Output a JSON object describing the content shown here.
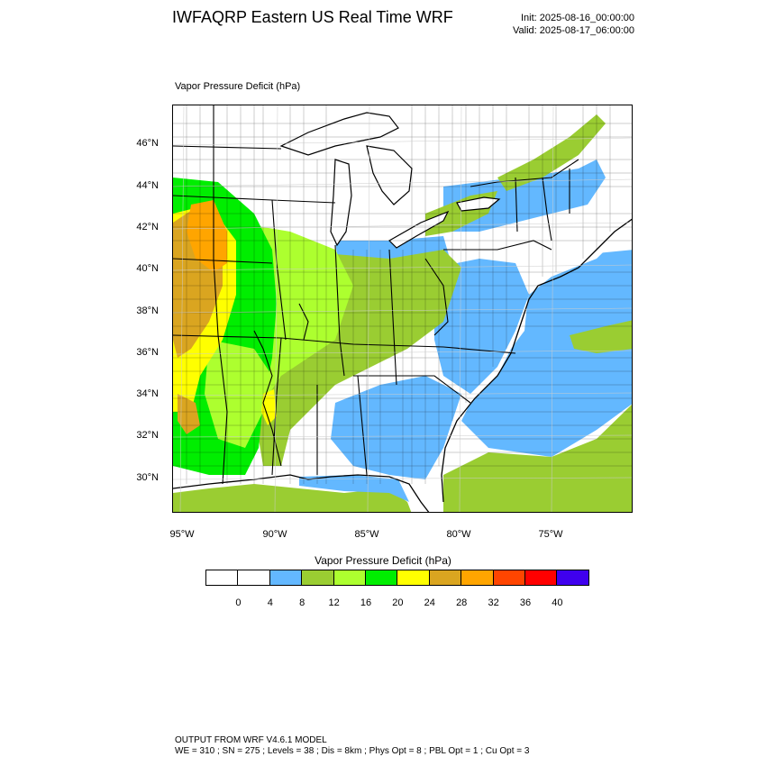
{
  "header": {
    "title": "IWFAQRP Eastern US Real Time WRF",
    "init": "Init: 2025-08-16_00:00:00",
    "valid": "Valid: 2025-08-17_06:00:00"
  },
  "plot": {
    "label": "Vapor Pressure Deficit   (hPa)"
  },
  "map": {
    "lat_labels": [
      "46°N",
      "44°N",
      "42°N",
      "40°N",
      "38°N",
      "36°N",
      "34°N",
      "32°N",
      "30°N"
    ],
    "lon_labels": [
      "95°W",
      "90°W",
      "85°W",
      "80°W",
      "75°W"
    ],
    "water_color": "#ffffff",
    "land_color": "#ffffff"
  },
  "colorbar": {
    "title": "Vapor Pressure Deficit   (hPa)",
    "ticks": [
      "0",
      "4",
      "8",
      "12",
      "16",
      "20",
      "24",
      "28",
      "32",
      "36",
      "40"
    ],
    "colors": [
      "#ffffff",
      "#ffffff",
      "#63b8ff",
      "#9acd32",
      "#adff2f",
      "#00ee00",
      "#ffff00",
      "#daa520",
      "#ffa500",
      "#ff4500",
      "#ff0000",
      "#3f00ee"
    ]
  },
  "footer": {
    "line1": "OUTPUT FROM WRF V4.6.1 MODEL",
    "line2": "WE = 310 ; SN = 275 ; Levels = 38 ; Dis = 8km ; Phys Opt = 8 ; PBL Opt = 1 ; Cu Opt = 3"
  }
}
